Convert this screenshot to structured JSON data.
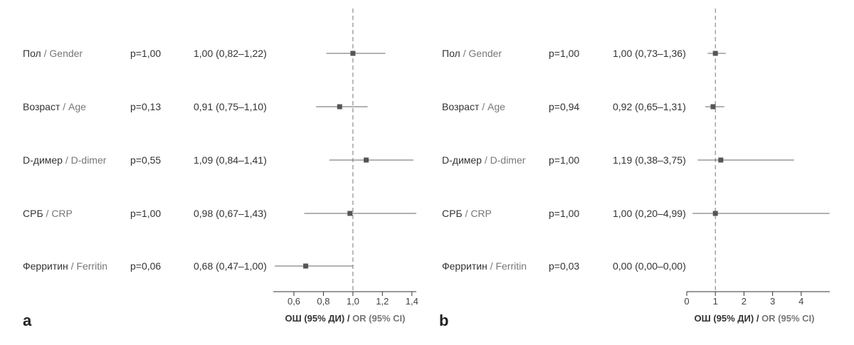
{
  "chart_data": [
    {
      "type": "forest",
      "panel_label": "a",
      "rows": [
        {
          "label_ru": "Пол",
          "label_en": "Gender",
          "p": "p=1,00",
          "or_text": "1,00 (0,82–1,22)",
          "or": 1.0,
          "lo": 0.82,
          "hi": 1.22
        },
        {
          "label_ru": "Возраст",
          "label_en": "Age",
          "p": "p=0,13",
          "or_text": "0,91 (0,75–1,10)",
          "or": 0.91,
          "lo": 0.75,
          "hi": 1.1
        },
        {
          "label_ru": "D-димер",
          "label_en": "D-dimer",
          "p": "p=0,55",
          "or_text": "1,09 (0,84–1,41)",
          "or": 1.09,
          "lo": 0.84,
          "hi": 1.41
        },
        {
          "label_ru": "СРБ",
          "label_en": "CRP",
          "p": "p=1,00",
          "or_text": "0,98 (0,67–1,43)",
          "or": 0.98,
          "lo": 0.67,
          "hi": 1.43
        },
        {
          "label_ru": "Ферритин",
          "label_en": "Ferritin",
          "p": "p=0,06",
          "or_text": "0,68 (0,47–1,00)",
          "or": 0.68,
          "lo": 0.47,
          "hi": 1.0
        }
      ],
      "xlim": [
        0.46,
        1.43
      ],
      "ticks": [
        0.6,
        0.8,
        1.0,
        1.2,
        1.4
      ],
      "tick_labels": [
        "0,6",
        "0,8",
        "1,0",
        "1,2",
        "1,4"
      ],
      "reference_line": 1.0,
      "xlabel_ru": "ОШ (95% ДИ)",
      "xlabel_en": "OR (95% CI)"
    },
    {
      "type": "forest",
      "panel_label": "b",
      "rows": [
        {
          "label_ru": "Пол",
          "label_en": "Gender",
          "p": "p=1,00",
          "or_text": "1,00 (0,73–1,36)",
          "or": 1.0,
          "lo": 0.73,
          "hi": 1.36
        },
        {
          "label_ru": "Возраст",
          "label_en": "Age",
          "p": "p=0,94",
          "or_text": "0,92 (0,65–1,31)",
          "or": 0.92,
          "lo": 0.65,
          "hi": 1.31
        },
        {
          "label_ru": "D-димер",
          "label_en": "D-dimer",
          "p": "p=1,00",
          "or_text": "1,19 (0,38–3,75)",
          "or": 1.19,
          "lo": 0.38,
          "hi": 3.75
        },
        {
          "label_ru": "СРБ",
          "label_en": "CRP",
          "p": "p=1,00",
          "or_text": "1,00 (0,20–4,99)",
          "or": 1.0,
          "lo": 0.2,
          "hi": 4.99
        },
        {
          "label_ru": "Ферритин",
          "label_en": "Ferritin",
          "p": "p=0,03",
          "or_text": "0,00 (0,00–0,00)",
          "or": null,
          "lo": null,
          "hi": null
        }
      ],
      "xlim": [
        0,
        5
      ],
      "ticks": [
        0,
        1,
        2,
        3,
        4
      ],
      "tick_labels": [
        "0",
        "1",
        "2",
        "3",
        "4"
      ],
      "reference_line": 1.0,
      "xlabel_ru": "ОШ (95% ДИ)",
      "xlabel_en": "OR (95% CI)"
    }
  ],
  "colors": {
    "mark": "#555555",
    "line": "#666666",
    "reference": "#777777"
  }
}
